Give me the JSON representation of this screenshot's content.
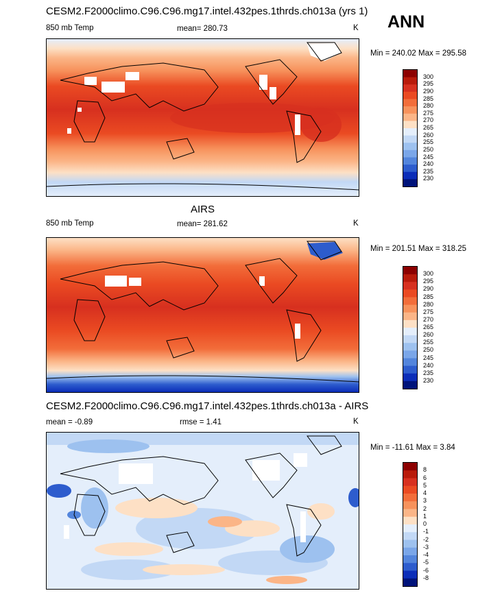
{
  "header": {
    "title1": "CESM2.F2000climo.C96.C96.mg17.intel.432pes.1thrds.ch013a (yrs 1)",
    "season": "ANN",
    "title2": "AIRS",
    "title3": "CESM2.F2000climo.C96.C96.mg17.intel.432pes.1thrds.ch013a - AIRS"
  },
  "chart_data": [
    {
      "type": "heatmap",
      "panel": "test",
      "variable": "850 mb Temp",
      "units": "K",
      "mean_label": "mean= 280.73",
      "range_label": "Min = 240.02 Max = 295.58",
      "min": 240.02,
      "max": 295.58,
      "mean": 280.73,
      "colorbar_levels": [
        "300",
        "295",
        "290",
        "285",
        "280",
        "275",
        "270",
        "265",
        "260",
        "255",
        "250",
        "245",
        "240",
        "235",
        "230"
      ],
      "colorbar_colors": [
        "#8c0000",
        "#b81a0a",
        "#d7301f",
        "#ea4a22",
        "#f26d3a",
        "#f7925c",
        "#fbb587",
        "#fde0c5",
        "#e4eefb",
        "#c2d8f5",
        "#9dc1ef",
        "#7aa6e8",
        "#5385dc",
        "#2d5ccd",
        "#0b2db8",
        "#00137a"
      ]
    },
    {
      "type": "heatmap",
      "panel": "reference",
      "variable": "850 mb Temp",
      "units": "K",
      "mean_label": "mean= 281.62",
      "range_label": "Min = 201.51 Max = 318.25",
      "min": 201.51,
      "max": 318.25,
      "mean": 281.62,
      "colorbar_levels": [
        "300",
        "295",
        "290",
        "285",
        "280",
        "275",
        "270",
        "265",
        "260",
        "255",
        "250",
        "245",
        "240",
        "235",
        "230"
      ],
      "colorbar_colors": [
        "#8c0000",
        "#b81a0a",
        "#d7301f",
        "#ea4a22",
        "#f26d3a",
        "#f7925c",
        "#fbb587",
        "#fde0c5",
        "#e4eefb",
        "#c2d8f5",
        "#9dc1ef",
        "#7aa6e8",
        "#5385dc",
        "#2d5ccd",
        "#0b2db8",
        "#00137a"
      ]
    },
    {
      "type": "heatmap",
      "panel": "difference",
      "units": "K",
      "mean_label": "mean =  -0.89",
      "rmse_label": "rmse =   1.41",
      "range_label": "Min = -11.61 Max =   3.84",
      "min": -11.61,
      "max": 3.84,
      "mean": -0.89,
      "rmse": 1.41,
      "colorbar_levels": [
        "8",
        "6",
        "5",
        "4",
        "3",
        "2",
        "1",
        "0",
        "-1",
        "-2",
        "-3",
        "-4",
        "-5",
        "-6",
        "-8"
      ],
      "colorbar_colors": [
        "#8c0000",
        "#b81a0a",
        "#d7301f",
        "#ea4a22",
        "#f26d3a",
        "#f7925c",
        "#fbb587",
        "#fde0c5",
        "#e4eefb",
        "#c2d8f5",
        "#9dc1ef",
        "#7aa6e8",
        "#5385dc",
        "#2d5ccd",
        "#0b2db8",
        "#00137a"
      ]
    }
  ]
}
